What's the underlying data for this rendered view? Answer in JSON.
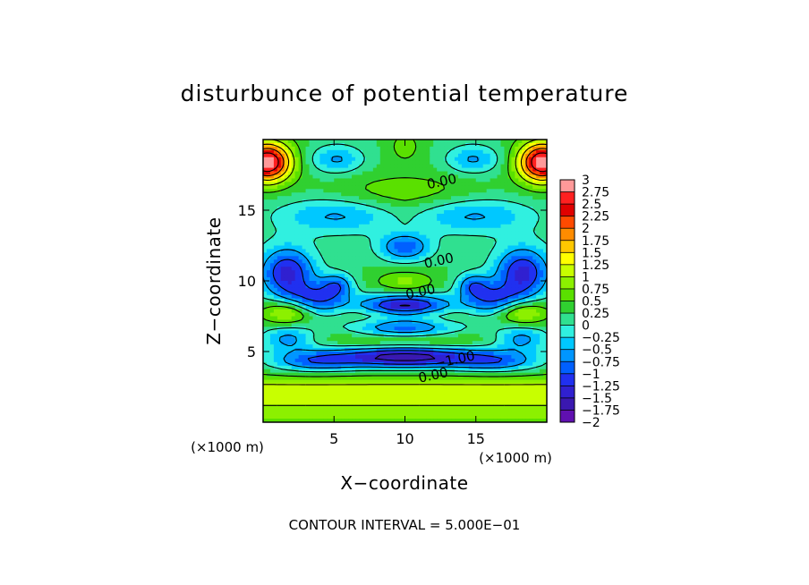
{
  "chart_data": {
    "type": "heatmap",
    "title": "disturbunce of potential temperature",
    "xlabel": "X−coordinate",
    "ylabel": "Z−coordinate",
    "x_unit_left": "(×1000 m)",
    "x_unit_right": "(×1000 m)",
    "xlim": [
      0,
      20
    ],
    "ylim": [
      0,
      20
    ],
    "x_ticks": [
      5,
      10,
      15
    ],
    "y_ticks": [
      5,
      10,
      15
    ],
    "contour_labels": [
      {
        "text": "0.00",
        "x": 12.6,
        "z": 17.0
      },
      {
        "text": "0.00",
        "x": 12.4,
        "z": 11.4
      },
      {
        "text": "0.00",
        "x": 11.1,
        "z": 9.2
      },
      {
        "text": "−1.00",
        "x": 13.5,
        "z": 4.4
      },
      {
        "text": "0.00",
        "x": 12.0,
        "z": 3.3
      }
    ],
    "footer": "CONTOUR INTERVAL = 5.000E−01",
    "colorbar": {
      "min": -2,
      "max": 3,
      "step": 0.25,
      "labels": [
        "3",
        "2.75",
        "2.5",
        "2.25",
        "2",
        "1.75",
        "1.5",
        "1.25",
        "1",
        "0.75",
        "0.5",
        "0.25",
        "0",
        "−0.25",
        "−0.5",
        "−0.75",
        "−1",
        "−1.25",
        "−1.5",
        "−1.75",
        "−2"
      ],
      "colors": [
        "#ff9999",
        "#ff2020",
        "#e00000",
        "#ff4a00",
        "#ff8c00",
        "#ffc800",
        "#ffff00",
        "#c8ff00",
        "#8cf000",
        "#5ae000",
        "#30d030",
        "#30e090",
        "#30f0e0",
        "#00c8ff",
        "#0096ff",
        "#0060ff",
        "#2030f0",
        "#3020d0",
        "#3a18b0",
        "#6010b0"
      ]
    }
  }
}
